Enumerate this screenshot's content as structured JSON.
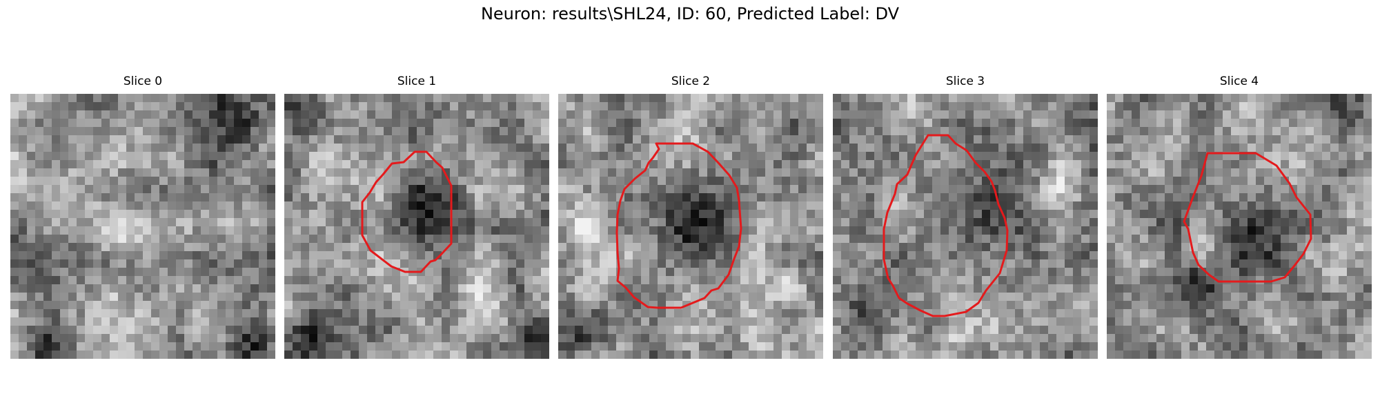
{
  "figure": {
    "title": "Neuron: results\\SHL24, ID: 60, Predicted Label: DV"
  },
  "contour_color": "#e41a1c",
  "panels": [
    {
      "title": "Slice 0",
      "has_contour": false,
      "seed": 11,
      "dark_blobs": [
        [
          0.78,
          0.12,
          0.18
        ],
        [
          0.15,
          0.92,
          0.12
        ],
        [
          0.93,
          0.95,
          0.12
        ]
      ],
      "bright_blobs": [
        [
          0.2,
          0.3,
          0.22
        ],
        [
          0.45,
          0.5,
          0.2
        ]
      ]
    },
    {
      "title": "Slice 1",
      "has_contour": true,
      "seed": 23,
      "dark_blobs": [
        [
          0.54,
          0.45,
          0.2
        ],
        [
          0.05,
          0.07,
          0.12
        ],
        [
          0.08,
          0.92,
          0.14
        ],
        [
          0.95,
          0.9,
          0.12
        ]
      ],
      "bright_blobs": [
        [
          0.25,
          0.08,
          0.15
        ],
        [
          0.75,
          0.8,
          0.15
        ]
      ]
    },
    {
      "title": "Slice 2",
      "has_contour": true,
      "seed": 37,
      "dark_blobs": [
        [
          0.5,
          0.47,
          0.28
        ],
        [
          0.1,
          0.9,
          0.15
        ]
      ],
      "bright_blobs": [
        [
          0.1,
          0.5,
          0.12
        ],
        [
          0.88,
          0.7,
          0.1
        ]
      ]
    },
    {
      "title": "Slice 3",
      "has_contour": true,
      "seed": 41,
      "dark_blobs": [
        [
          0.52,
          0.48,
          0.3
        ],
        [
          0.12,
          0.87,
          0.18
        ]
      ],
      "bright_blobs": [
        [
          0.3,
          0.05,
          0.15
        ],
        [
          0.85,
          0.35,
          0.1
        ],
        [
          0.45,
          0.92,
          0.12
        ]
      ]
    },
    {
      "title": "Slice 4",
      "has_contour": true,
      "seed": 53,
      "dark_blobs": [
        [
          0.55,
          0.5,
          0.2
        ],
        [
          0.35,
          0.7,
          0.12
        ],
        [
          0.92,
          0.08,
          0.12
        ]
      ],
      "bright_blobs": [
        [
          0.2,
          0.28,
          0.15
        ],
        [
          0.9,
          0.4,
          0.1
        ]
      ]
    }
  ]
}
